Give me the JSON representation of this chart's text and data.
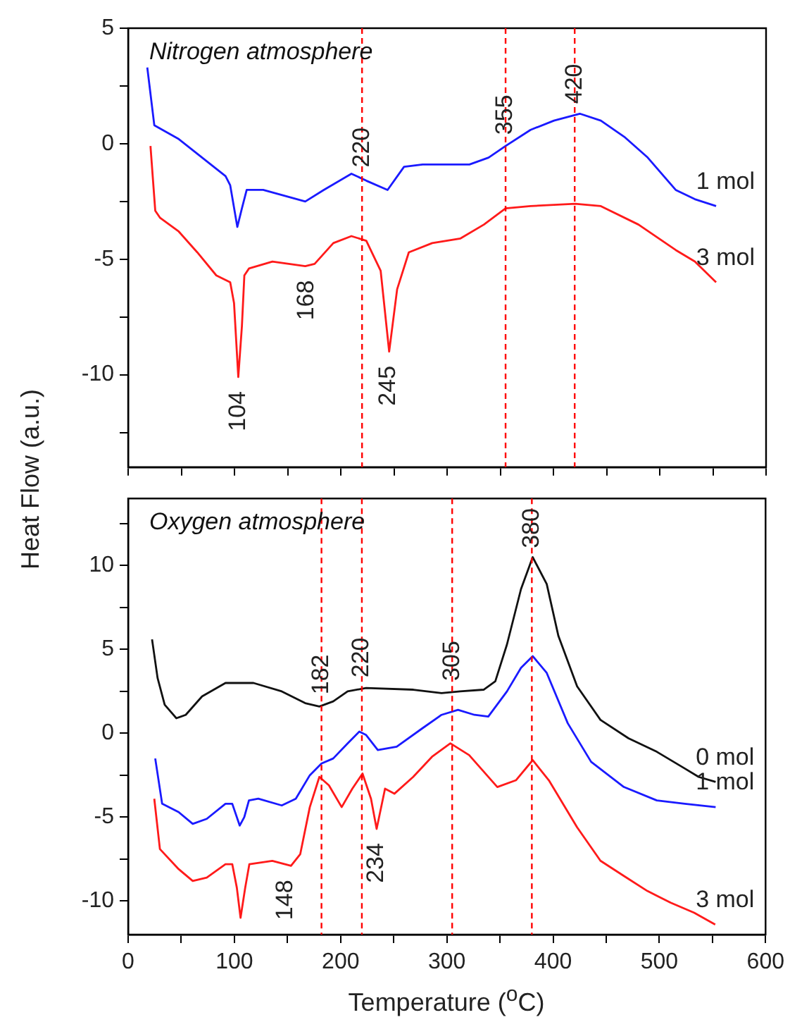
{
  "chart_data": [
    {
      "type": "line",
      "title": "Nitrogen atmosphere",
      "ylabel": "Heat Flow (a.u.)",
      "xlim": [
        0,
        600
      ],
      "xticks": [
        0,
        50,
        100,
        150,
        200,
        250,
        300,
        350,
        400,
        450,
        500,
        550,
        600
      ],
      "ylim": [
        -14,
        5
      ],
      "yticks": [
        5,
        {
          "value": 2.5,
          "label": null
        },
        0,
        {
          "value": -2.5,
          "label": null
        },
        -5,
        {
          "value": -7.5,
          "label": null
        },
        -10,
        {
          "value": -12.5,
          "label": null
        }
      ],
      "tick_labels": "y",
      "grid": false,
      "legend": false,
      "series": [
        {
          "name": "1 mol",
          "color": "#1a1aff",
          "x": [
            18,
            24.6,
            47.6,
            69.6,
            91.6,
            96,
            102.7,
            107,
            111.5,
            127,
            166.6,
            184,
            210,
            224,
            244,
            259.5,
            277,
            321,
            339,
            355,
            378.5,
            400.5,
            424.8,
            444.6,
            466.6,
            488.7,
            515,
            533,
            553
          ],
          "values": [
            3.3,
            0.8,
            0.2,
            -0.6,
            -1.4,
            -1.8,
            -3.6,
            -2.8,
            -2.0,
            -2.0,
            -2.5,
            -2.0,
            -1.3,
            -1.6,
            -2.0,
            -1.0,
            -0.9,
            -0.9,
            -0.6,
            -0.1,
            0.6,
            1.0,
            1.3,
            1.0,
            0.3,
            -0.6,
            -2.0,
            -2.4,
            -2.7
          ]
        },
        {
          "name": "3 mol",
          "color": "#ff1a1a",
          "x": [
            21,
            25.5,
            29.9,
            47.6,
            65,
            82.9,
            96,
            99.6,
            103.6,
            107,
            109.3,
            113.7,
            135.7,
            166.6,
            175.4,
            193,
            210,
            224,
            237.5,
            245.5,
            253,
            264,
            286,
            312.6,
            334.6,
            355,
            378.5,
            420.4,
            444.6,
            480,
            515,
            533,
            553
          ],
          "values": [
            -0.1,
            -2.9,
            -3.2,
            -3.8,
            -4.7,
            -5.7,
            -6.0,
            -6.9,
            -10.1,
            -7.9,
            -5.7,
            -5.4,
            -5.1,
            -5.3,
            -5.2,
            -4.3,
            -4.0,
            -4.2,
            -5.5,
            -9.0,
            -6.3,
            -4.7,
            -4.3,
            -4.1,
            -3.5,
            -2.8,
            -2.7,
            -2.6,
            -2.7,
            -3.5,
            -4.6,
            -5.1,
            -6.0
          ]
        }
      ],
      "ref_lines": [
        {
          "axis": "x",
          "value": 220,
          "label": "220",
          "color": "#ff0000",
          "line_style": "dashed"
        },
        {
          "axis": "x",
          "value": 355,
          "label": "355",
          "color": "#ff0000",
          "line_style": "dashed"
        },
        {
          "axis": "x",
          "value": 420,
          "label": "420",
          "color": "#ff0000",
          "line_style": "dashed"
        }
      ],
      "annotations": [
        {
          "text": "104",
          "x": 104,
          "y": -10.1
        },
        {
          "text": "168",
          "x": 168,
          "y": -5.3
        },
        {
          "text": "245",
          "x": 245,
          "y": -9.0
        }
      ]
    },
    {
      "type": "line",
      "title": "Oxygen atmosphere",
      "xlabel": "Temperature ($^{o}$C)",
      "xlim": [
        0,
        600
      ],
      "xticks": [
        0,
        {
          "value": 50,
          "label": null
        },
        100,
        {
          "value": 150,
          "label": null
        },
        200,
        {
          "value": 250,
          "label": null
        },
        300,
        {
          "value": 350,
          "label": null
        },
        400,
        {
          "value": 450,
          "label": null
        },
        500,
        {
          "value": 550,
          "label": null
        },
        600
      ],
      "ylim": [
        -12,
        14
      ],
      "yticks": [
        {
          "value": 12.5,
          "label": null
        },
        10,
        {
          "value": 7.5,
          "label": null
        },
        5,
        {
          "value": 2.5,
          "label": null
        },
        0,
        {
          "value": -2.5,
          "label": null
        },
        -5,
        {
          "value": -7.5,
          "label": null
        },
        -10
      ],
      "grid": false,
      "legend": false,
      "series": [
        {
          "name": "0 mol",
          "color": "#111111",
          "x": [
            22.5,
            27.7,
            34.4,
            45.4,
            54.2,
            69.6,
            91.6,
            118,
            144.6,
            166.6,
            180,
            193,
            206.6,
            224,
            268.5,
            295,
            312.6,
            334.6,
            345.6,
            356.6,
            369.8,
            380.8,
            394,
            405,
            422.6,
            444.6,
            471,
            497.6,
            524,
            537,
            553
          ],
          "values": [
            5.6,
            3.3,
            1.7,
            0.9,
            1.1,
            2.2,
            3.0,
            3.0,
            2.5,
            1.8,
            1.6,
            1.9,
            2.5,
            2.7,
            2.6,
            2.4,
            2.5,
            2.6,
            3.1,
            5.3,
            8.6,
            10.5,
            8.9,
            5.8,
            2.8,
            0.8,
            -0.3,
            -1.1,
            -2.1,
            -2.6,
            -2.9
          ]
        },
        {
          "name": "1 mol",
          "color": "#1a1aff",
          "x": [
            25.5,
            32,
            47.6,
            60.8,
            74,
            91.6,
            98,
            105,
            109.3,
            113.7,
            122.5,
            144.6,
            157.8,
            171,
            182,
            193,
            206.6,
            217.6,
            224,
            235,
            252.8,
            277,
            295,
            310.5,
            326,
            339,
            356.6,
            369.8,
            380.8,
            394,
            413.8,
            435.8,
            466.6,
            497.6,
            524,
            553
          ],
          "values": [
            -1.5,
            -4.2,
            -4.7,
            -5.4,
            -5.1,
            -4.2,
            -4.2,
            -5.5,
            -5.0,
            -4.0,
            -3.9,
            -4.3,
            -3.9,
            -2.5,
            -1.8,
            -1.5,
            -0.6,
            0.1,
            -0.1,
            -1.0,
            -0.8,
            0.3,
            1.1,
            1.4,
            1.1,
            1.0,
            2.5,
            3.9,
            4.6,
            3.6,
            0.6,
            -1.7,
            -3.2,
            -4.0,
            -4.2,
            -4.4
          ]
        },
        {
          "name": "3 mol",
          "color": "#ff1a1a",
          "x": [
            24.6,
            29.9,
            47.6,
            60.8,
            74,
            91.6,
            98,
            102.3,
            105.8,
            110.2,
            114.1,
            135.7,
            153.3,
            162,
            171,
            180,
            189,
            201,
            211,
            220.6,
            228.6,
            233.9,
            241.8,
            250.6,
            268.3,
            286,
            303.3,
            321,
            347.5,
            365,
            380.8,
            396,
            422.6,
            444.6,
            466.6,
            488.7,
            510.7,
            532.8,
            552.6
          ],
          "values": [
            -3.9,
            -6.9,
            -8.1,
            -8.8,
            -8.6,
            -7.8,
            -7.8,
            -9.2,
            -11.0,
            -9.2,
            -7.8,
            -7.6,
            -7.9,
            -7.2,
            -4.4,
            -2.6,
            -3.1,
            -4.4,
            -3.3,
            -2.4,
            -3.9,
            -5.7,
            -3.3,
            -3.6,
            -2.6,
            -1.4,
            -0.6,
            -1.3,
            -3.2,
            -2.8,
            -1.6,
            -2.8,
            -5.6,
            -7.6,
            -8.5,
            -9.4,
            -10.1,
            -10.7,
            -11.4
          ]
        }
      ],
      "ref_lines": [
        {
          "axis": "x",
          "value": 182,
          "label": "182",
          "color": "#ff0000",
          "line_style": "dashed"
        },
        {
          "axis": "x",
          "value": 220,
          "label": "220",
          "color": "#ff0000",
          "line_style": "dashed"
        },
        {
          "axis": "x",
          "value": 305,
          "label": "305",
          "color": "#ff0000",
          "line_style": "dashed"
        },
        {
          "axis": "x",
          "value": 380,
          "label": "380",
          "color": "#ff0000",
          "line_style": "dashed"
        }
      ],
      "annotations": [
        {
          "text": "148",
          "x": 148,
          "y": -7.9
        },
        {
          "text": "234",
          "x": 234,
          "y": -5.7
        }
      ]
    }
  ]
}
